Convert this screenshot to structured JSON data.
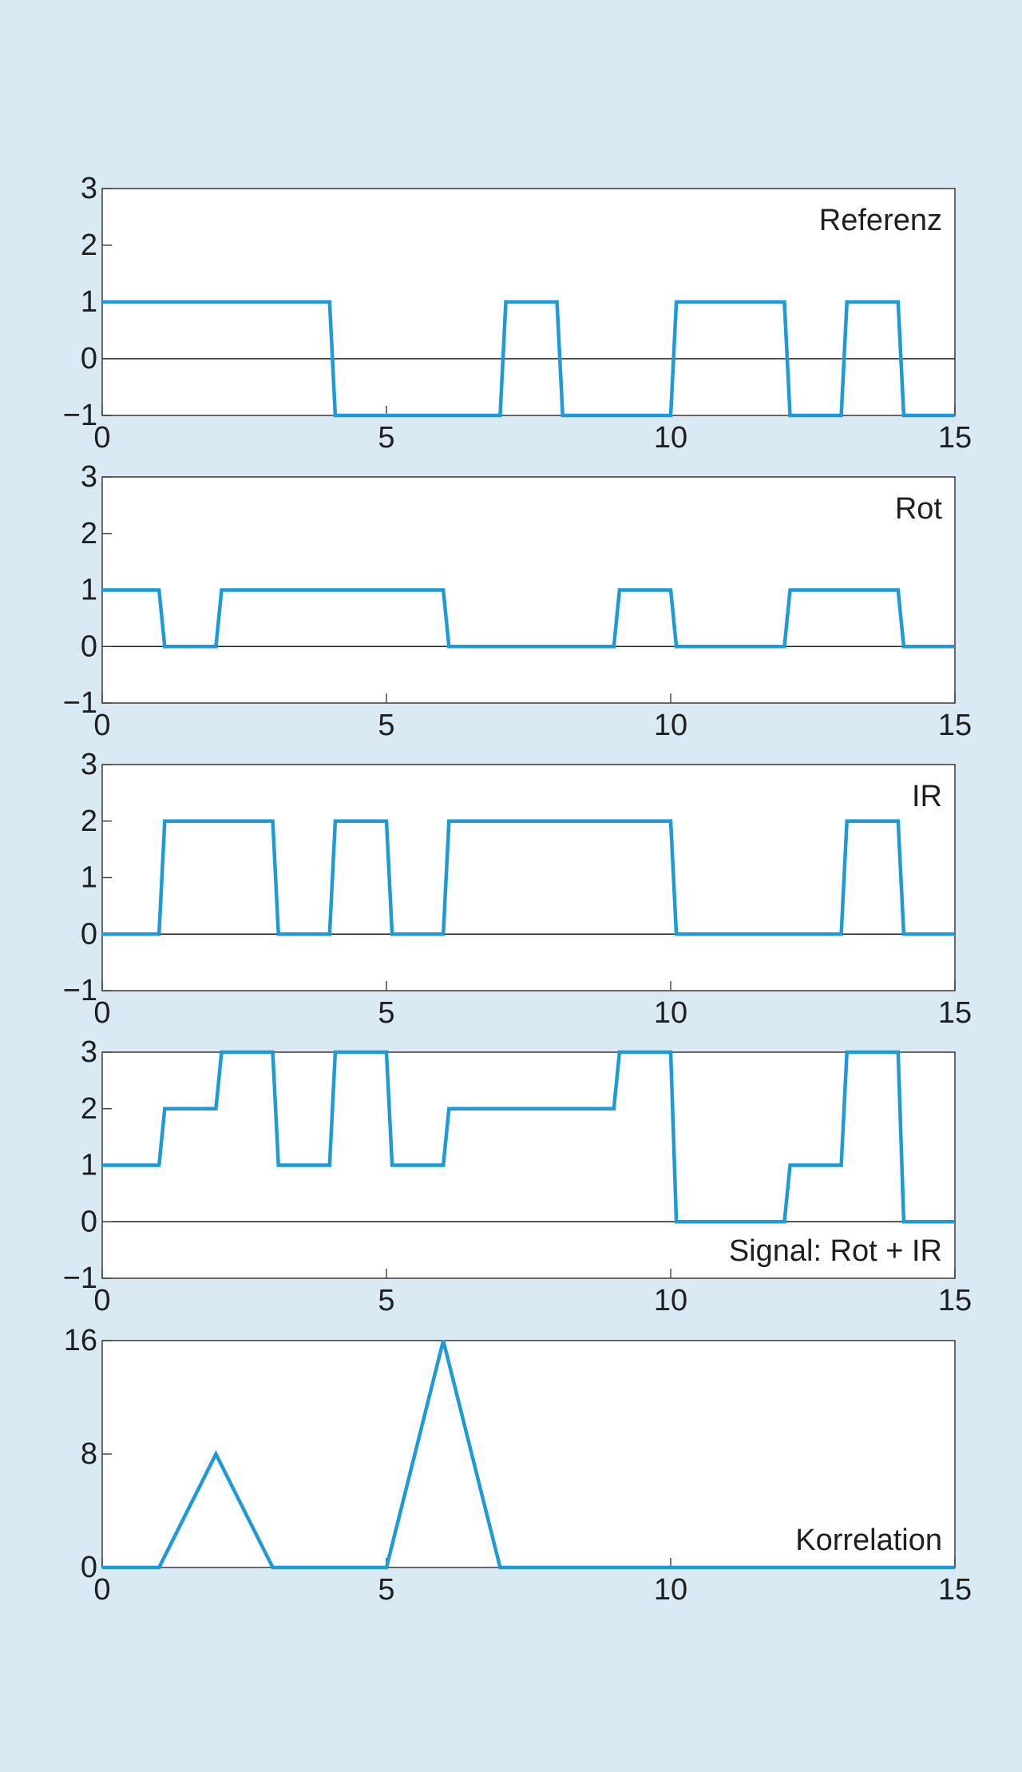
{
  "colors": {
    "background": "#d9eaf4",
    "plot_background": "#ffffff",
    "series": "#1e9ad6",
    "axis": "#3a3a3a"
  },
  "chart_data": [
    {
      "type": "line",
      "label": "Referenz",
      "x": [
        0,
        4,
        4.1,
        7,
        7.1,
        8,
        8.1,
        10,
        10.1,
        12,
        12.1,
        13,
        13.1,
        14,
        14.1,
        15
      ],
      "y": [
        1,
        1,
        -1,
        -1,
        1,
        1,
        -1,
        -1,
        1,
        1,
        -1,
        -1,
        1,
        1,
        -1,
        -1
      ],
      "xlim": [
        0,
        15
      ],
      "ylim": [
        -1,
        3
      ],
      "xticks": [
        0,
        5,
        10,
        15
      ],
      "yticks": [
        -1,
        0,
        1,
        2,
        3
      ],
      "ytick_labels": [
        "−1",
        "0",
        "1",
        "2",
        "3"
      ],
      "zero_line": true
    },
    {
      "type": "line",
      "label": "Rot",
      "x": [
        0,
        1,
        1.1,
        2,
        2.1,
        6,
        6.1,
        9,
        9.1,
        10,
        10.1,
        12,
        12.1,
        14,
        14.1,
        15
      ],
      "y": [
        1,
        1,
        0,
        0,
        1,
        1,
        0,
        0,
        1,
        1,
        0,
        0,
        1,
        1,
        0,
        0
      ],
      "xlim": [
        0,
        15
      ],
      "ylim": [
        -1,
        3
      ],
      "xticks": [
        0,
        5,
        10,
        15
      ],
      "yticks": [
        -1,
        0,
        1,
        2,
        3
      ],
      "ytick_labels": [
        "−1",
        "0",
        "1",
        "2",
        "3"
      ],
      "zero_line": true
    },
    {
      "type": "line",
      "label": "IR",
      "x": [
        0,
        1,
        1.1,
        3,
        3.1,
        4,
        4.1,
        5,
        5.1,
        6,
        6.1,
        10,
        10.1,
        13,
        13.1,
        14,
        14.1,
        15
      ],
      "y": [
        0,
        0,
        2,
        2,
        0,
        0,
        2,
        2,
        0,
        0,
        2,
        2,
        0,
        0,
        2,
        2,
        0,
        0
      ],
      "xlim": [
        0,
        15
      ],
      "ylim": [
        -1,
        3
      ],
      "xticks": [
        0,
        5,
        10,
        15
      ],
      "yticks": [
        -1,
        0,
        1,
        2,
        3
      ],
      "ytick_labels": [
        "−1",
        "0",
        "1",
        "2",
        "3"
      ],
      "zero_line": true
    },
    {
      "type": "line",
      "label": "Signal: Rot + IR",
      "x": [
        0,
        1,
        1.1,
        2,
        2.1,
        3,
        3.1,
        4,
        4.1,
        5,
        5.1,
        6,
        6.1,
        9,
        9.1,
        10,
        10.1,
        12,
        12.1,
        13,
        13.1,
        14,
        14.1,
        15
      ],
      "y": [
        1,
        1,
        2,
        2,
        3,
        3,
        1,
        1,
        3,
        3,
        1,
        1,
        2,
        2,
        3,
        3,
        0,
        0,
        1,
        1,
        3,
        3,
        0,
        0
      ],
      "xlim": [
        0,
        15
      ],
      "ylim": [
        -1,
        3
      ],
      "xticks": [
        0,
        5,
        10,
        15
      ],
      "yticks": [
        -1,
        0,
        1,
        2,
        3
      ],
      "ytick_labels": [
        "−1",
        "0",
        "1",
        "2",
        "3"
      ],
      "zero_line": true
    },
    {
      "type": "line",
      "label": "Korrelation",
      "x": [
        0,
        1,
        2,
        3,
        5,
        6,
        7,
        15
      ],
      "y": [
        0,
        0,
        8,
        0,
        0,
        16,
        0,
        0
      ],
      "xlim": [
        0,
        15
      ],
      "ylim": [
        0,
        16
      ],
      "xticks": [
        0,
        5,
        10,
        15
      ],
      "yticks": [
        0,
        8,
        16
      ],
      "ytick_labels": [
        "0",
        "8",
        "16"
      ],
      "zero_line": false
    }
  ]
}
